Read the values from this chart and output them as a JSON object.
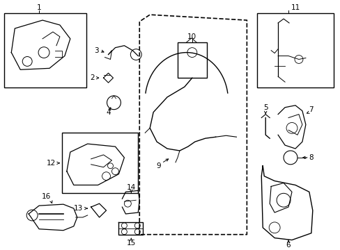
{
  "bg_color": "#ffffff",
  "fig_width": 4.89,
  "fig_height": 3.6,
  "dpi": 100,
  "line_color": "#000000",
  "text_color": "#000000",
  "font_size": 7.5
}
